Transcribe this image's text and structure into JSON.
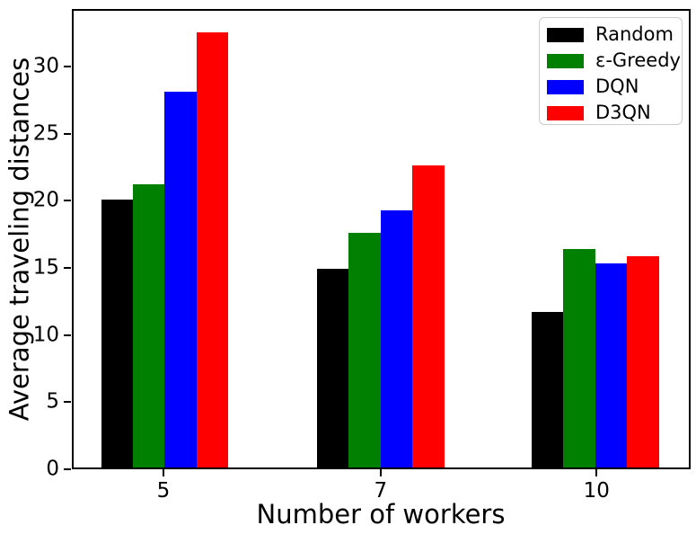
{
  "figure": {
    "background": "#ffffff",
    "spine_color": "#000000",
    "text_color": "#000000"
  },
  "chart_data": {
    "type": "bar",
    "title": "",
    "xlabel": "Number of workers",
    "ylabel": "Average traveling distances",
    "categories": [
      "5",
      "7",
      "10"
    ],
    "series": [
      {
        "name": "Random",
        "color": "#000000",
        "values": [
          20.1,
          14.9,
          11.7
        ]
      },
      {
        "name": "ε-Greedy",
        "color": "#008000",
        "values": [
          21.3,
          17.6,
          16.4
        ]
      },
      {
        "name": "DQN",
        "color": "#0000ff",
        "values": [
          28.2,
          19.3,
          15.3
        ]
      },
      {
        "name": "D3QN",
        "color": "#ff0000",
        "values": [
          32.7,
          22.7,
          15.9
        ]
      }
    ],
    "ylim": [
      0,
      34.3
    ],
    "yticks": [
      0,
      5,
      10,
      15,
      20,
      25,
      30
    ],
    "grid": false,
    "legend_position": "upper right",
    "legend_border_color": "#cccccc",
    "group_centers_frac": [
      0.148,
      0.499,
      0.848
    ],
    "bar_width_frac": 0.0517
  }
}
